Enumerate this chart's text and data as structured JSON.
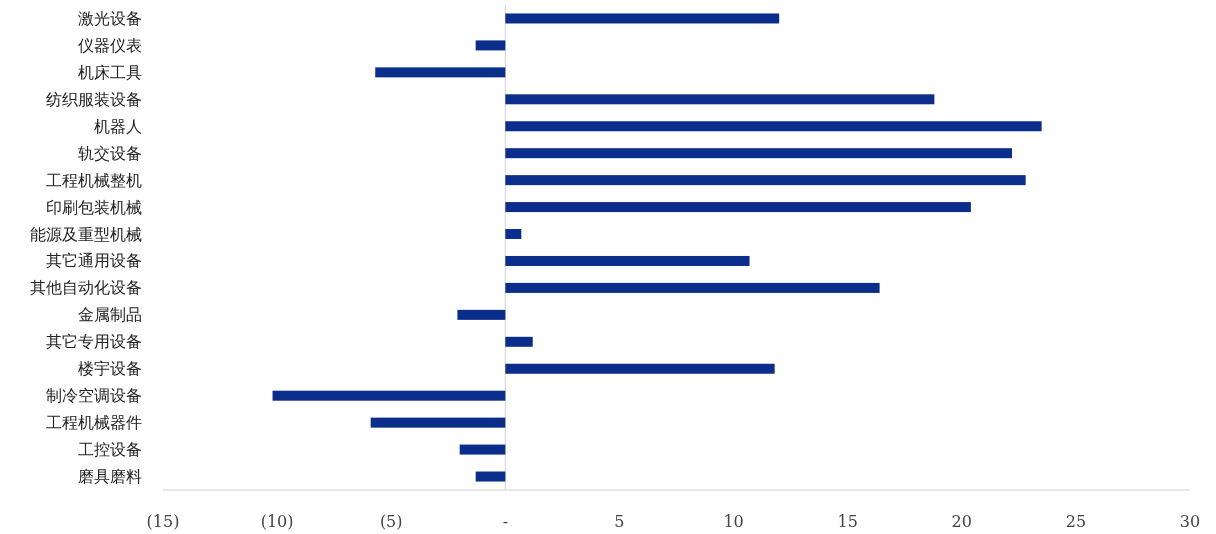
{
  "chart_data": {
    "type": "bar",
    "orientation": "horizontal",
    "color": "#0b2e8c",
    "categories": [
      "激光设备",
      "仪器仪表",
      "机床工具",
      "纺织服装设备",
      "机器人",
      "轨交设备",
      "工程机械整机",
      "印刷包装机械",
      "能源及重型机械",
      "其它通用设备",
      "其他自动化设备",
      "金属制品",
      "其它专用设备",
      "楼宇设备",
      "制冷空调设备",
      "工程机械器件",
      "工控设备",
      "磨具磨料"
    ],
    "values": [
      12.0,
      -1.3,
      -5.7,
      18.8,
      23.5,
      22.2,
      22.8,
      20.4,
      0.7,
      10.7,
      16.4,
      -2.1,
      1.2,
      11.8,
      -10.2,
      -5.9,
      -2.0,
      -1.3
    ],
    "xlim": [
      -15,
      30
    ],
    "xticks": [
      {
        "value": -15,
        "label": "(15)"
      },
      {
        "value": -10,
        "label": "(10)"
      },
      {
        "value": -5,
        "label": "(5)"
      },
      {
        "value": 0,
        "label": "-"
      },
      5,
      10,
      15,
      20,
      25,
      30
    ]
  }
}
